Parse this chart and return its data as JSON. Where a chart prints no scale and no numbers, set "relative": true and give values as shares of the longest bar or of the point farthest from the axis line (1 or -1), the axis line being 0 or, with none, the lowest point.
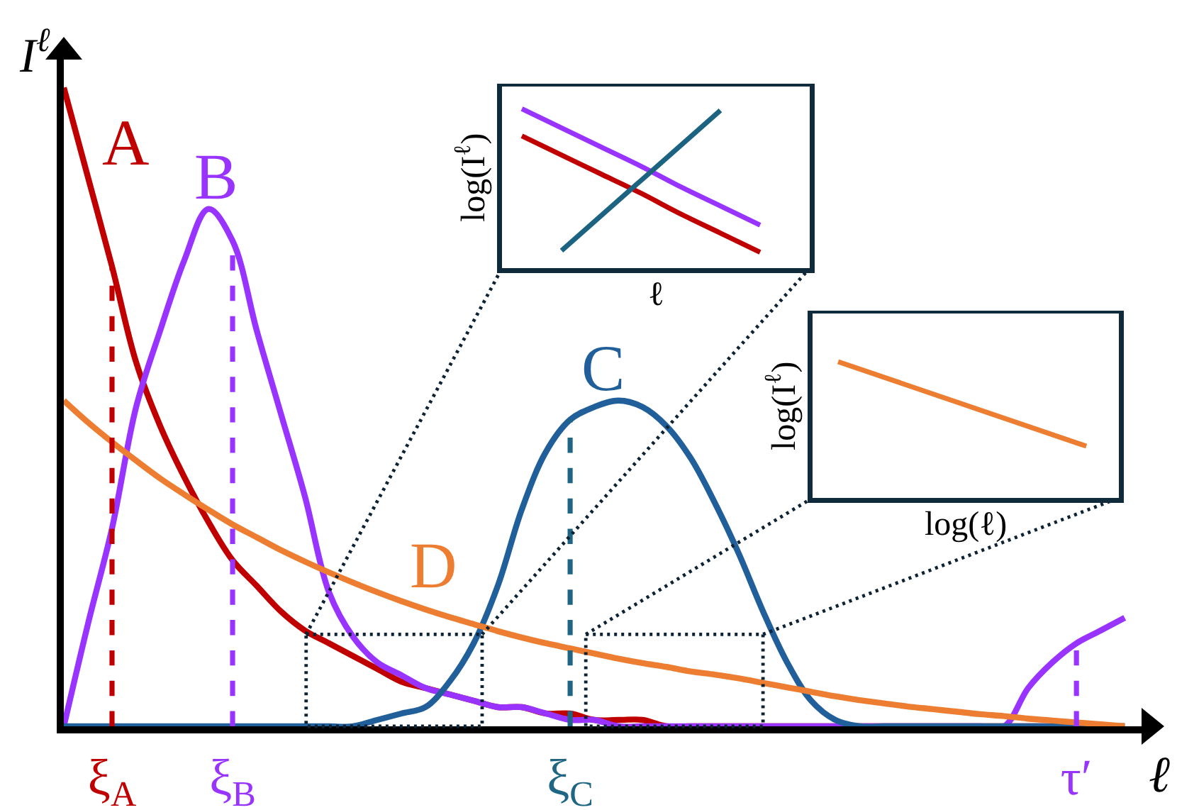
{
  "chart_data": [
    {
      "type": "line",
      "relative": true,
      "xlabel": "ℓ",
      "ylabel": "I$^{ℓ}$",
      "categories": [
        null,
        null,
        "ξ$_{A}$",
        null,
        null,
        null,
        null,
        "ξ$_{B}$",
        null,
        null,
        null,
        null,
        null,
        null,
        null,
        null,
        null,
        null,
        null,
        null,
        null,
        "ξ$_{C}$",
        null,
        null,
        null,
        null,
        null,
        null,
        null,
        null,
        null,
        null,
        null,
        null,
        null,
        null,
        null,
        null,
        null,
        null,
        null,
        null,
        "τ′",
        null,
        null
      ],
      "series": [
        {
          "name": "A",
          "color": "#c00000",
          "values": [
            1.0,
            0.86,
            0.72,
            0.57,
            0.47,
            0.39,
            0.32,
            0.26,
            0.22,
            0.18,
            0.15,
            0.13,
            0.11,
            0.09,
            0.07,
            0.06,
            0.05,
            0.04,
            0.03,
            0.03,
            0.02,
            0.02,
            0.01,
            0.01,
            0.01,
            0,
            0,
            0,
            0,
            0,
            0,
            0,
            0,
            0,
            0,
            0,
            0,
            0,
            0,
            0,
            0,
            0,
            0,
            0,
            0
          ]
        },
        {
          "name": "B",
          "color": "#9933ff",
          "values": [
            0,
            0.16,
            0.31,
            0.5,
            0.62,
            0.73,
            0.81,
            0.76,
            0.62,
            0.49,
            0.36,
            0.21,
            0.14,
            0.1,
            0.08,
            0.06,
            0.05,
            0.04,
            0.03,
            0.03,
            0.02,
            0.01,
            0.01,
            0,
            0,
            0,
            0,
            0,
            0,
            0,
            0,
            0,
            0,
            0,
            0,
            0,
            0,
            0,
            0,
            0,
            0.06,
            0.1,
            0.13,
            0.15,
            0.17
          ]
        },
        {
          "name": "C",
          "color": "#215f9a",
          "values": [
            0,
            0,
            0,
            0,
            0,
            0,
            0,
            0,
            0,
            0,
            0,
            0,
            0.0,
            0.01,
            0.02,
            0.03,
            0.07,
            0.13,
            0.22,
            0.34,
            0.43,
            0.48,
            0.5,
            0.51,
            0.5,
            0.47,
            0.42,
            0.35,
            0.27,
            0.18,
            0.1,
            0.04,
            0.01,
            0,
            0,
            0,
            0,
            0,
            0,
            0,
            0,
            0,
            0,
            0,
            0
          ]
        },
        {
          "name": "D",
          "color": "#ed7d31",
          "values": [
            0.51,
            0.476,
            0.445,
            0.416,
            0.388,
            0.363,
            0.339,
            0.316,
            0.296,
            0.276,
            0.258,
            0.241,
            0.225,
            0.21,
            0.196,
            0.183,
            0.171,
            0.16,
            0.149,
            0.139,
            0.13,
            0.122,
            0.114,
            0.106,
            0.099,
            0.093,
            0.086,
            0.081,
            0.075,
            0.068,
            0.061,
            0.054,
            0.047,
            0.041,
            0.036,
            0.031,
            0.027,
            0.023,
            0.019,
            0.016,
            0.012,
            0.009,
            0.006,
            0.003,
            0.0
          ]
        },
        {
          "color": "#c00000",
          "line_style": "dashed",
          "x": [
            "ξ$_{A}$",
            "ξ$_{A}$"
          ],
          "values": [
            0,
            0.72
          ]
        },
        {
          "color": "#9933ff",
          "line_style": "dashed",
          "x": [
            "ξ$_{B}$",
            "ξ$_{B}$"
          ],
          "values": [
            0,
            0.76
          ]
        },
        {
          "color": "#1f6584",
          "line_style": "dashed",
          "x": [
            "ξ$_{C}$",
            "ξ$_{C}$"
          ],
          "values": [
            0,
            0.48
          ]
        },
        {
          "color": "#9933ff",
          "line_style": "dashed",
          "x": [
            "τ′",
            "τ′"
          ],
          "values": [
            0,
            0.13
          ]
        }
      ]
    },
    {
      "type": "line",
      "relative": true,
      "xlabel": "ℓ",
      "ylabel": "log(I$^{ℓ}$)",
      "categories": [
        null,
        null,
        null,
        null,
        null,
        null,
        null
      ],
      "series": [
        {
          "color": "#9933ff",
          "values": [
            1.0,
            0.88,
            0.76,
            0.64,
            0.51,
            0.39,
            0.27
          ]
        },
        {
          "color": "#c00000",
          "values": [
            0.83,
            0.71,
            0.59,
            0.47,
            0.34,
            0.22,
            0.1
          ]
        },
        {
          "color": "#1b6380",
          "values": [
            null,
            0.11,
            0.33,
            0.55,
            0.77,
            0.99,
            null
          ]
        }
      ]
    },
    {
      "type": "line",
      "relative": true,
      "xlabel": "log(ℓ)",
      "ylabel": "log(I$^{ℓ}$)",
      "categories": [
        null,
        null
      ],
      "series": [
        {
          "color": "#ed7d31",
          "values": [
            1,
            0.38
          ]
        }
      ]
    }
  ]
}
